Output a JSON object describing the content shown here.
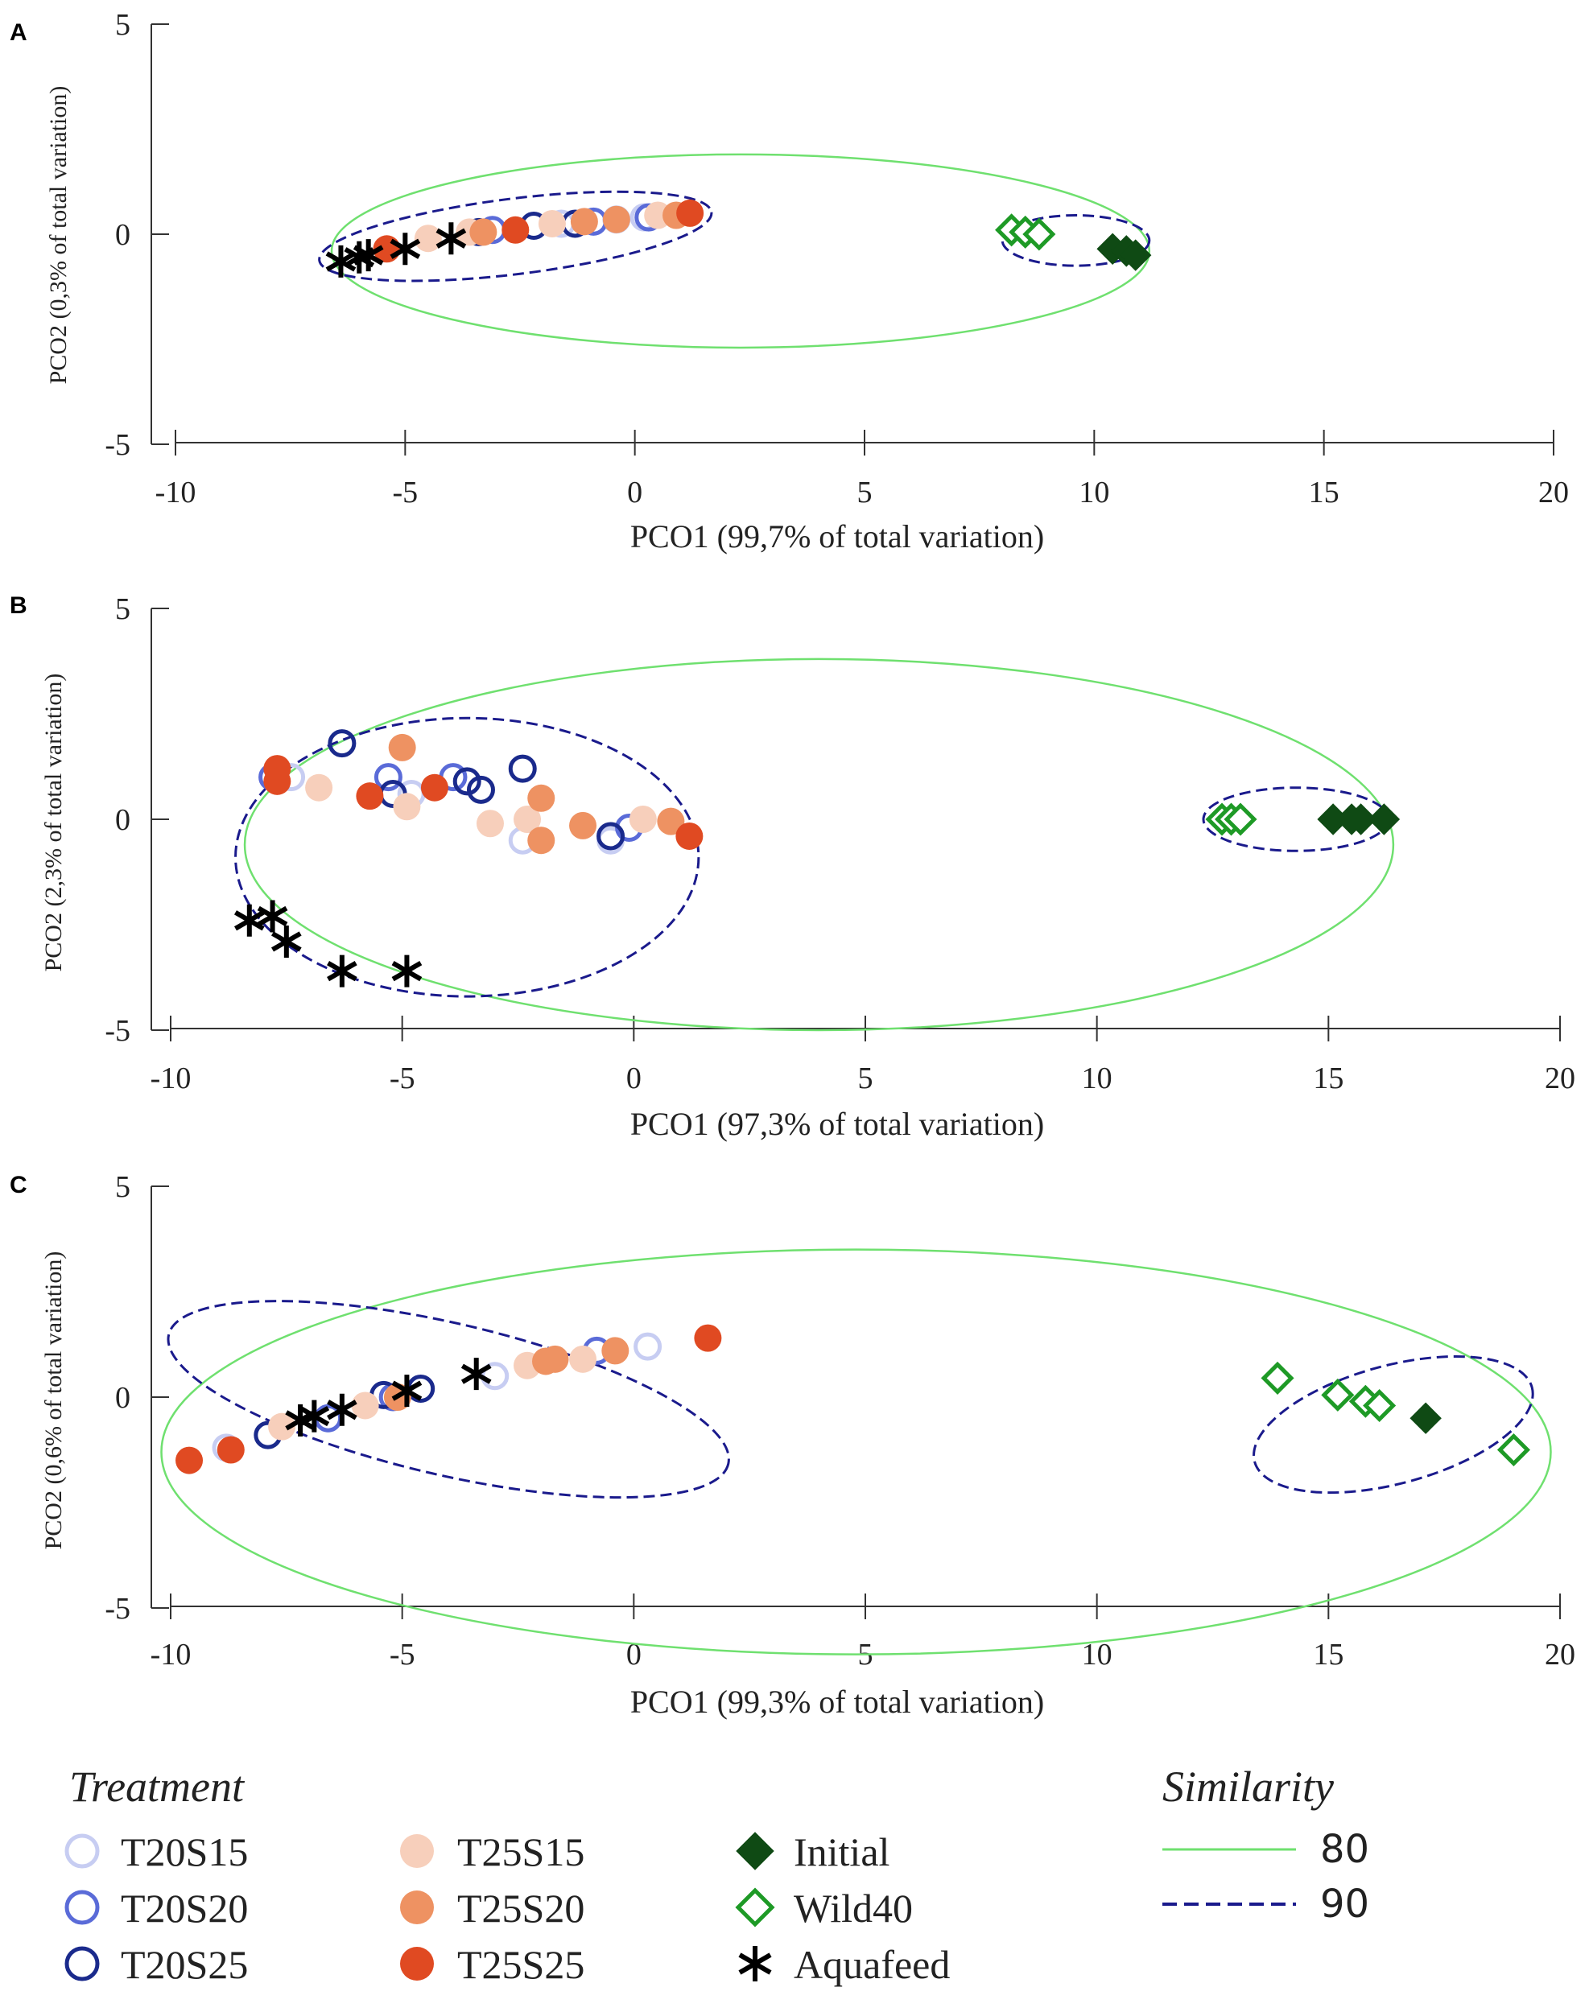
{
  "chart_data": [
    {
      "panel": "A",
      "type": "scatter",
      "xlabel": "PCO1 (99,7% of total variation)",
      "ylabel": "PCO2 (0,3% of total variation)",
      "xlim": [
        -10,
        20
      ],
      "ylim": [
        -5,
        5
      ],
      "xticks": [
        "-10",
        "-5",
        "0",
        "5",
        "10",
        "15",
        "20"
      ],
      "yticks": [
        "5",
        "0",
        "-5"
      ],
      "ellipses": [
        {
          "level": "80",
          "cx": 2.3,
          "cy": -0.4,
          "rx": 8.9,
          "ry": 2.3,
          "angle": 0
        },
        {
          "level": "90",
          "cx": -2.6,
          "cy": -0.05,
          "rx": 4.3,
          "ry": 0.9,
          "angle": 7
        },
        {
          "level": "90",
          "cx": 9.6,
          "cy": -0.15,
          "rx": 1.6,
          "ry": 0.6,
          "angle": 0
        }
      ],
      "series": [
        {
          "name": "T20S15",
          "points": [
            [
              -1.6,
              0.25
            ],
            [
              -0.4,
              0.35
            ],
            [
              0.2,
              0.4
            ]
          ]
        },
        {
          "name": "T20S20",
          "points": [
            [
              -3.1,
              0.1
            ],
            [
              -0.9,
              0.3
            ],
            [
              0.3,
              0.4
            ]
          ]
        },
        {
          "name": "T20S25",
          "points": [
            [
              -2.2,
              0.2
            ],
            [
              -1.3,
              0.25
            ],
            [
              -3.4,
              0.05
            ]
          ]
        },
        {
          "name": "T25S15",
          "points": [
            [
              -4.5,
              -0.1
            ],
            [
              -3.6,
              0.05
            ],
            [
              -1.8,
              0.25
            ],
            [
              0.5,
              0.45
            ]
          ]
        },
        {
          "name": "T25S20",
          "points": [
            [
              -3.3,
              0.05
            ],
            [
              -1.1,
              0.3
            ],
            [
              -0.4,
              0.35
            ],
            [
              0.9,
              0.45
            ]
          ]
        },
        {
          "name": "T25S25",
          "points": [
            [
              -5.4,
              -0.35
            ],
            [
              -2.6,
              0.1
            ],
            [
              1.2,
              0.5
            ]
          ]
        },
        {
          "name": "Initial",
          "points": [
            [
              10.4,
              -0.35
            ],
            [
              10.7,
              -0.4
            ],
            [
              10.9,
              -0.5
            ]
          ]
        },
        {
          "name": "Wild40",
          "points": [
            [
              8.2,
              0.1
            ],
            [
              8.5,
              0.05
            ],
            [
              8.8,
              0.0
            ]
          ]
        },
        {
          "name": "Aquafeed",
          "points": [
            [
              -6.4,
              -0.65
            ],
            [
              -6.0,
              -0.55
            ],
            [
              -5.8,
              -0.5
            ],
            [
              -5.0,
              -0.35
            ],
            [
              -4.0,
              -0.1
            ]
          ]
        }
      ]
    },
    {
      "panel": "B",
      "type": "scatter",
      "xlabel": "PCO1 (97,3% of total variation)",
      "ylabel": "PCO2 (2,3% of total variation)",
      "xlim": [
        -10,
        20
      ],
      "ylim": [
        -5,
        5
      ],
      "xticks": [
        "-10",
        "-5",
        "0",
        "5",
        "10",
        "15",
        "20"
      ],
      "yticks": [
        "5",
        "0",
        "-5"
      ],
      "ellipses": [
        {
          "level": "80",
          "cx": 4.0,
          "cy": -0.6,
          "rx": 12.4,
          "ry": 4.4,
          "angle": 0
        },
        {
          "level": "90",
          "cx": -3.6,
          "cy": -0.9,
          "rx": 5.0,
          "ry": 3.3,
          "angle": 0
        },
        {
          "level": "90",
          "cx": 14.3,
          "cy": 0.0,
          "rx": 2.0,
          "ry": 0.75,
          "angle": 0
        }
      ],
      "series": [
        {
          "name": "T20S15",
          "points": [
            [
              -7.4,
              1.0
            ],
            [
              -4.8,
              0.6
            ],
            [
              -2.4,
              -0.5
            ],
            [
              -0.5,
              -0.5
            ]
          ]
        },
        {
          "name": "T20S20",
          "points": [
            [
              -7.8,
              1.0
            ],
            [
              -5.3,
              1.0
            ],
            [
              -3.9,
              1.0
            ],
            [
              -0.1,
              -0.2
            ]
          ]
        },
        {
          "name": "T20S25",
          "points": [
            [
              -6.3,
              1.8
            ],
            [
              -5.2,
              0.6
            ],
            [
              -3.6,
              0.9
            ],
            [
              -3.3,
              0.7
            ],
            [
              -2.4,
              1.2
            ],
            [
              -0.5,
              -0.4
            ]
          ]
        },
        {
          "name": "T25S15",
          "points": [
            [
              -6.8,
              0.75
            ],
            [
              -4.9,
              0.3
            ],
            [
              -3.1,
              -0.1
            ],
            [
              -2.3,
              0.0
            ],
            [
              0.2,
              0.0
            ]
          ]
        },
        {
          "name": "T25S20",
          "points": [
            [
              -5.0,
              1.7
            ],
            [
              -2.0,
              0.5
            ],
            [
              -2.0,
              -0.5
            ],
            [
              -1.1,
              -0.15
            ],
            [
              0.8,
              -0.05
            ]
          ]
        },
        {
          "name": "T25S25",
          "points": [
            [
              -7.7,
              1.2
            ],
            [
              -7.7,
              0.9
            ],
            [
              -5.7,
              0.55
            ],
            [
              -4.3,
              0.75
            ],
            [
              1.2,
              -0.4
            ]
          ]
        },
        {
          "name": "Initial",
          "points": [
            [
              15.1,
              0.0
            ],
            [
              15.5,
              0.0
            ],
            [
              15.7,
              0.0
            ],
            [
              16.2,
              0.0
            ]
          ]
        },
        {
          "name": "Wild40",
          "points": [
            [
              12.7,
              0.0
            ],
            [
              12.9,
              0.0
            ],
            [
              13.1,
              0.0
            ]
          ]
        },
        {
          "name": "Aquafeed",
          "points": [
            [
              -8.3,
              -2.4
            ],
            [
              -7.8,
              -2.3
            ],
            [
              -7.5,
              -2.9
            ],
            [
              -6.3,
              -3.6
            ],
            [
              -4.9,
              -3.6
            ]
          ]
        }
      ]
    },
    {
      "panel": "C",
      "type": "scatter",
      "xlabel": "PCO1 (99,3% of total variation)",
      "ylabel": "PCO2 (0,6% of total variation)",
      "xlim": [
        -10,
        20
      ],
      "ylim": [
        -5,
        5
      ],
      "xticks": [
        "-10",
        "-5",
        "0",
        "5",
        "10",
        "15",
        "20"
      ],
      "yticks": [
        "5",
        "0",
        "-5"
      ],
      "ellipses": [
        {
          "level": "80",
          "cx": 4.8,
          "cy": -1.3,
          "rx": 15.0,
          "ry": 4.8,
          "angle": 0
        },
        {
          "level": "90",
          "cx": -4.0,
          "cy": -0.05,
          "rx": 6.2,
          "ry": 1.8,
          "angle": -13
        },
        {
          "level": "90",
          "cx": 16.4,
          "cy": -0.65,
          "rx": 3.1,
          "ry": 1.4,
          "angle": 15
        }
      ],
      "series": [
        {
          "name": "T20S15",
          "points": [
            [
              -8.8,
              -1.2
            ],
            [
              -3.0,
              0.5
            ],
            [
              0.3,
              1.2
            ]
          ]
        },
        {
          "name": "T20S20",
          "points": [
            [
              -6.6,
              -0.5
            ],
            [
              -5.2,
              0.0
            ],
            [
              -0.8,
              1.1
            ]
          ]
        },
        {
          "name": "T20S25",
          "points": [
            [
              -7.9,
              -0.9
            ],
            [
              -5.4,
              0.05
            ],
            [
              -4.6,
              0.2
            ]
          ]
        },
        {
          "name": "T25S15",
          "points": [
            [
              -7.6,
              -0.7
            ],
            [
              -5.8,
              -0.2
            ],
            [
              -2.3,
              0.75
            ],
            [
              -1.1,
              0.9
            ]
          ]
        },
        {
          "name": "T25S20",
          "points": [
            [
              -5.1,
              0.0
            ],
            [
              -1.9,
              0.85
            ],
            [
              -1.7,
              0.9
            ],
            [
              -0.4,
              1.1
            ]
          ]
        },
        {
          "name": "T25S25",
          "points": [
            [
              -9.6,
              -1.5
            ],
            [
              -8.7,
              -1.25
            ],
            [
              1.6,
              1.4
            ]
          ]
        },
        {
          "name": "Initial",
          "points": [
            [
              17.1,
              -0.5
            ]
          ]
        },
        {
          "name": "Wild40",
          "points": [
            [
              13.9,
              0.45
            ],
            [
              15.2,
              0.05
            ],
            [
              15.8,
              -0.1
            ],
            [
              16.1,
              -0.2
            ],
            [
              19.0,
              -1.25
            ]
          ]
        },
        {
          "name": "Aquafeed",
          "points": [
            [
              -7.2,
              -0.55
            ],
            [
              -6.9,
              -0.45
            ],
            [
              -6.3,
              -0.3
            ],
            [
              -4.9,
              0.15
            ],
            [
              -3.4,
              0.55
            ]
          ]
        }
      ]
    }
  ],
  "legend": {
    "treatment_title": "Treatment",
    "similarity_title": "Similarity",
    "items": [
      {
        "name": "T20S15",
        "marker": "circle-open",
        "color": "#c7cdf2"
      },
      {
        "name": "T20S20",
        "marker": "circle-open",
        "color": "#5a6bd8"
      },
      {
        "name": "T20S25",
        "marker": "circle-open",
        "color": "#1a2a8c"
      },
      {
        "name": "T25S15",
        "marker": "circle-filled",
        "color": "#f7cfbb"
      },
      {
        "name": "T25S20",
        "marker": "circle-filled",
        "color": "#ee9262"
      },
      {
        "name": "T25S25",
        "marker": "circle-filled",
        "color": "#e04a22"
      },
      {
        "name": "Initial",
        "marker": "diamond-filled",
        "color": "#0f4a14"
      },
      {
        "name": "Wild40",
        "marker": "diamond-open",
        "color": "#1e9a26"
      },
      {
        "name": "Aquafeed",
        "marker": "asterisk",
        "color": "#000000"
      }
    ],
    "similarity": [
      {
        "label": "80",
        "style": "solid",
        "color": "#6fe06f"
      },
      {
        "label": "90",
        "style": "dashed",
        "color": "#1a1a8c"
      }
    ]
  }
}
